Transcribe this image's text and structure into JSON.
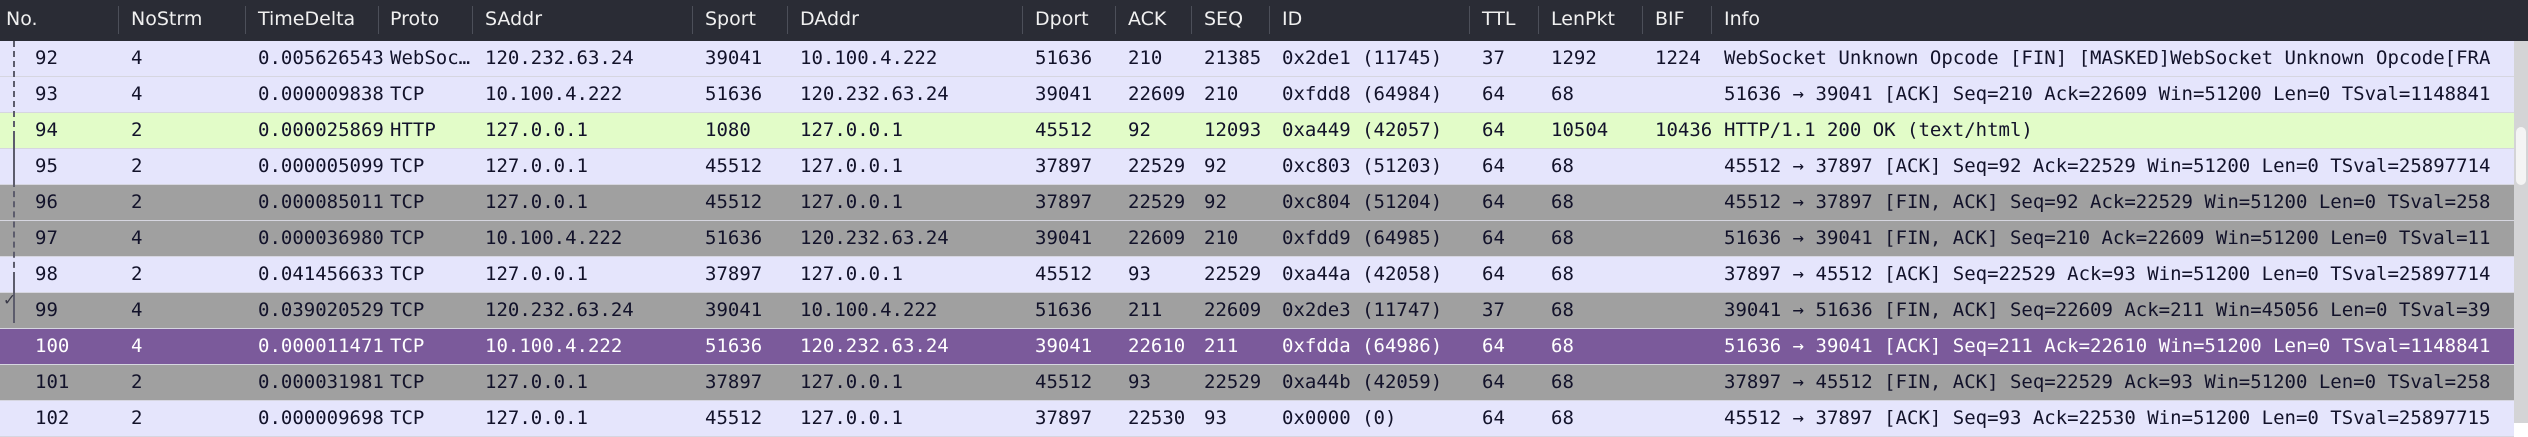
{
  "columns": [
    {
      "key": "no",
      "label": "No."
    },
    {
      "key": "nostrm",
      "label": "NoStrm"
    },
    {
      "key": "timedelta",
      "label": "TimeDelta"
    },
    {
      "key": "proto",
      "label": "Proto"
    },
    {
      "key": "saddr",
      "label": "SAddr"
    },
    {
      "key": "sport",
      "label": "Sport"
    },
    {
      "key": "daddr",
      "label": "DAddr"
    },
    {
      "key": "dport",
      "label": "Dport"
    },
    {
      "key": "ack",
      "label": "ACK"
    },
    {
      "key": "seq",
      "label": "SEQ"
    },
    {
      "key": "id",
      "label": "ID"
    },
    {
      "key": "ttl",
      "label": "TTL"
    },
    {
      "key": "lenpkt",
      "label": "LenPkt"
    },
    {
      "key": "bif",
      "label": "BIF"
    },
    {
      "key": "info",
      "label": "Info"
    }
  ],
  "rows": [
    {
      "kind": "ws",
      "cells": [
        "92",
        "4",
        "0.005626543",
        "WebSoc…",
        "120.232.63.24",
        "39041",
        "10.100.4.222",
        "51636",
        "210",
        "21385",
        "0x2de1 (11745)",
        "37",
        "1292",
        "1224",
        "WebSocket Unknown Opcode [FIN] [MASKED]WebSocket Unknown Opcode[FRA"
      ]
    },
    {
      "kind": "tcp",
      "cells": [
        "93",
        "4",
        "0.000009838",
        "TCP",
        "10.100.4.222",
        "51636",
        "120.232.63.24",
        "39041",
        "22609",
        "210",
        "0xfdd8 (64984)",
        "64",
        "68",
        "",
        "51636 → 39041 [ACK] Seq=210 Ack=22609 Win=51200 Len=0 TSval=1148841"
      ]
    },
    {
      "kind": "http",
      "cells": [
        "94",
        "2",
        "0.000025869",
        "HTTP",
        "127.0.0.1",
        "1080",
        "127.0.0.1",
        "45512",
        "92",
        "12093",
        "0xa449 (42057)",
        "64",
        "10504",
        "10436",
        "HTTP/1.1 200 OK  (text/html)"
      ]
    },
    {
      "kind": "tcp",
      "cells": [
        "95",
        "2",
        "0.000005099",
        "TCP",
        "127.0.0.1",
        "45512",
        "127.0.0.1",
        "37897",
        "22529",
        "92",
        "0xc803 (51203)",
        "64",
        "68",
        "",
        "45512 → 37897 [ACK] Seq=92 Ack=22529 Win=51200 Len=0 TSval=25897714"
      ]
    },
    {
      "kind": "fin",
      "cells": [
        "96",
        "2",
        "0.000085011",
        "TCP",
        "127.0.0.1",
        "45512",
        "127.0.0.1",
        "37897",
        "22529",
        "92",
        "0xc804 (51204)",
        "64",
        "68",
        "",
        "45512 → 37897 [FIN, ACK] Seq=92 Ack=22529 Win=51200 Len=0 TSval=258"
      ]
    },
    {
      "kind": "fin",
      "cells": [
        "97",
        "4",
        "0.000036980",
        "TCP",
        "10.100.4.222",
        "51636",
        "120.232.63.24",
        "39041",
        "22609",
        "210",
        "0xfdd9 (64985)",
        "64",
        "68",
        "",
        "51636 → 39041 [FIN, ACK] Seq=210 Ack=22609 Win=51200 Len=0 TSval=11"
      ]
    },
    {
      "kind": "tcp",
      "cells": [
        "98",
        "2",
        "0.041456633",
        "TCP",
        "127.0.0.1",
        "37897",
        "127.0.0.1",
        "45512",
        "93",
        "22529",
        "0xa44a (42058)",
        "64",
        "68",
        "",
        "37897 → 45512 [ACK] Seq=22529 Ack=93 Win=51200 Len=0 TSval=25897714"
      ]
    },
    {
      "kind": "fin",
      "cells": [
        "99",
        "4",
        "0.039020529",
        "TCP",
        "120.232.63.24",
        "39041",
        "10.100.4.222",
        "51636",
        "211",
        "22609",
        "0x2de3 (11747)",
        "37",
        "68",
        "",
        "39041 → 51636 [FIN, ACK] Seq=22609 Ack=211 Win=45056 Len=0 TSval=39"
      ]
    },
    {
      "kind": "sel",
      "cells": [
        "100",
        "4",
        "0.000011471",
        "TCP",
        "10.100.4.222",
        "51636",
        "120.232.63.24",
        "39041",
        "22610",
        "211",
        "0xfdda (64986)",
        "64",
        "68",
        "",
        "51636 → 39041 [ACK] Seq=211 Ack=22610 Win=51200 Len=0 TSval=1148841"
      ]
    },
    {
      "kind": "fin",
      "cells": [
        "101",
        "2",
        "0.000031981",
        "TCP",
        "127.0.0.1",
        "37897",
        "127.0.0.1",
        "45512",
        "93",
        "22529",
        "0xa44b (42059)",
        "64",
        "68",
        "",
        "37897 → 45512 [FIN, ACK] Seq=22529 Ack=93 Win=51200 Len=0 TSval=258"
      ]
    },
    {
      "kind": "tcp",
      "cells": [
        "102",
        "2",
        "0.000009698",
        "TCP",
        "127.0.0.1",
        "45512",
        "127.0.0.1",
        "37897",
        "22530",
        "93",
        "0x0000 (0)",
        "64",
        "68",
        "",
        "45512 → 37897 [ACK] Seq=93 Ack=22530 Win=51200 Len=0 TSval=25897715"
      ]
    }
  ],
  "icons": {
    "related_packet": "checkmark-icon"
  },
  "colors": {
    "header_bg": "#2a2c35",
    "tcp_row": "#e5e5fc",
    "http_row": "#e2fcc8",
    "fin_row": "#a0a0a0",
    "selected_row": "#7b5a9b"
  }
}
